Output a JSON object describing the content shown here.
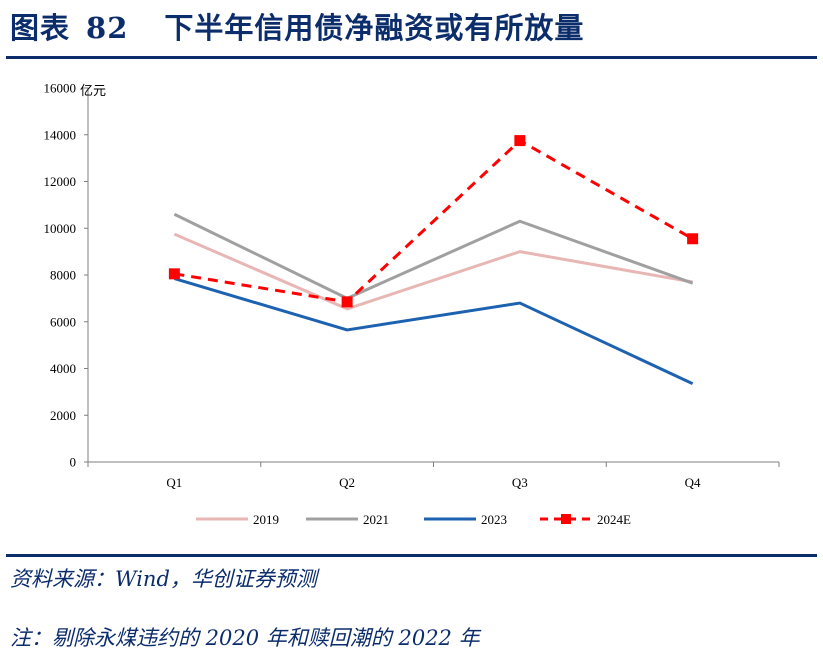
{
  "title": {
    "label": "图表",
    "number": "82",
    "text": "下半年信用债净融资或有所放量"
  },
  "footer": {
    "source": "资料来源：Wind，华创证券预测",
    "note": "注：剔除永煤违约的 2020 年和赎回潮的 2022 年"
  },
  "chart_data": {
    "type": "line",
    "unit": "亿元",
    "categories": [
      "Q1",
      "Q2",
      "Q3",
      "Q4"
    ],
    "ylim": [
      0,
      16000
    ],
    "yticks": [
      0,
      2000,
      4000,
      6000,
      8000,
      10000,
      12000,
      14000,
      16000
    ],
    "grid": false,
    "legend_position": "bottom",
    "series": [
      {
        "name": "2019",
        "values": [
          9750,
          6550,
          9000,
          7700
        ],
        "color": "#e8b7b5",
        "style": "solid",
        "marker": "none"
      },
      {
        "name": "2021",
        "values": [
          10600,
          7000,
          10300,
          7650
        ],
        "color": "#a0a0a0",
        "style": "solid",
        "marker": "none"
      },
      {
        "name": "2023",
        "values": [
          7850,
          5650,
          6800,
          3350
        ],
        "color": "#1c62b0",
        "style": "solid",
        "marker": "none"
      },
      {
        "name": "2024E",
        "values": [
          8050,
          6850,
          13750,
          9550
        ],
        "color": "#ff0000",
        "style": "dashed",
        "marker": "square"
      }
    ]
  }
}
